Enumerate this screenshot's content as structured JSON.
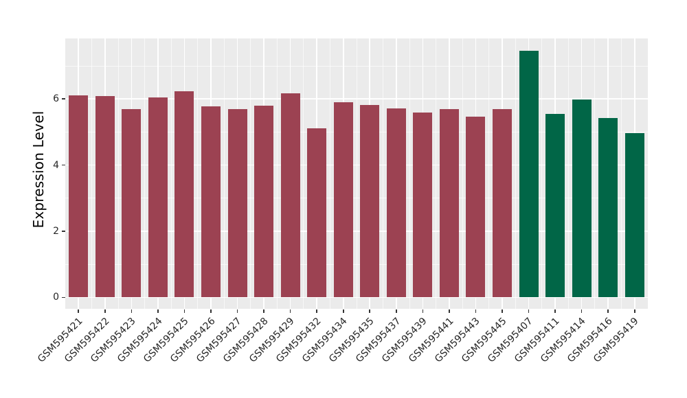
{
  "figure": {
    "background": "#FFFFFF",
    "panel_background": "#EBEBEB",
    "grid_major_color": "#FFFFFF",
    "grid_minor_color": "rgba(255,255,255,0.65)",
    "axis_text_color": "#262626",
    "axis_title_color": "#000000",
    "tick_mark_color": "#333333"
  },
  "chart_data": {
    "type": "bar",
    "title": "",
    "xlabel": "",
    "ylabel": "Expression Level",
    "ylim": [
      0,
      7.83
    ],
    "yticks": [
      0,
      2,
      4,
      6
    ],
    "minor_yticks": [
      1,
      3,
      5,
      7
    ],
    "grid": "white major+minor gridlines on grey panel (ggplot style)",
    "legend_position": "none",
    "x_tick_rotation_deg": 45,
    "group_colors": {
      "group1": "#9C4252",
      "group2": "#016647"
    },
    "categories": [
      "GSM595421",
      "GSM595422",
      "GSM595423",
      "GSM595424",
      "GSM595425",
      "GSM595426",
      "GSM595427",
      "GSM595428",
      "GSM595429",
      "GSM595432",
      "GSM595434",
      "GSM595435",
      "GSM595437",
      "GSM595439",
      "GSM595441",
      "GSM595443",
      "GSM595445",
      "GSM595407",
      "GSM595411",
      "GSM595414",
      "GSM595416",
      "GSM595419"
    ],
    "values": [
      6.1,
      6.09,
      5.69,
      6.05,
      6.23,
      5.78,
      5.7,
      5.79,
      6.18,
      5.11,
      5.9,
      5.81,
      5.71,
      5.59,
      5.7,
      5.47,
      5.69,
      7.45,
      5.54,
      5.99,
      5.42,
      4.96
    ],
    "bar_colors": [
      "#9C4252",
      "#9C4252",
      "#9C4252",
      "#9C4252",
      "#9C4252",
      "#9C4252",
      "#9C4252",
      "#9C4252",
      "#9C4252",
      "#9C4252",
      "#9C4252",
      "#9C4252",
      "#9C4252",
      "#9C4252",
      "#9C4252",
      "#9C4252",
      "#9C4252",
      "#016647",
      "#016647",
      "#016647",
      "#016647",
      "#016647"
    ]
  }
}
